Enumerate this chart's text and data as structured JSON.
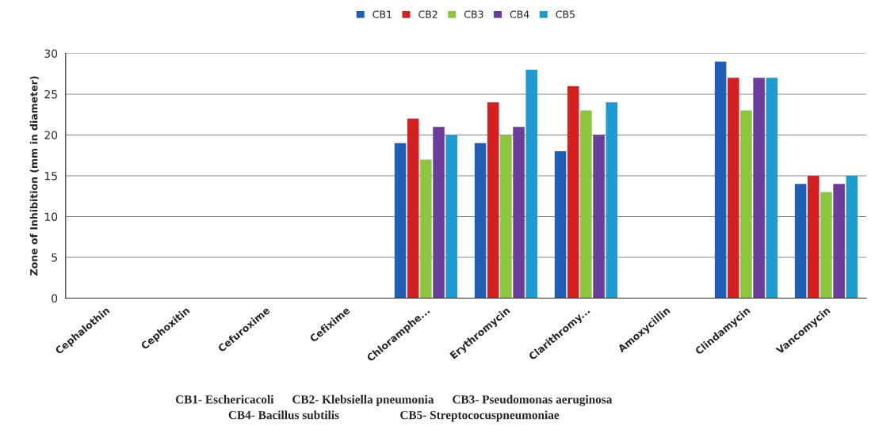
{
  "chart_data": {
    "type": "bar",
    "categories": [
      "Cephalothin",
      "Cephoxitin",
      "Cefuroxime",
      "Cefixime",
      "Chloramphe...",
      "Erythromycin",
      "Clarithromy...",
      "Amoxycillin",
      "Clindamycin",
      "Vancomycin"
    ],
    "series": [
      {
        "name": "CB1",
        "color": "#1f5fb5",
        "values": [
          0,
          0,
          0,
          0,
          19,
          19,
          18,
          0,
          29,
          14
        ]
      },
      {
        "name": "CB2",
        "color": "#d42020",
        "values": [
          0,
          0,
          0,
          0,
          22,
          24,
          26,
          0,
          27,
          15
        ]
      },
      {
        "name": "CB3",
        "color": "#8cc63f",
        "values": [
          0,
          0,
          0,
          0,
          17,
          20,
          23,
          0,
          23,
          13
        ]
      },
      {
        "name": "CB4",
        "color": "#6a3d9a",
        "values": [
          0,
          0,
          0,
          0,
          21,
          21,
          20,
          0,
          27,
          14
        ]
      },
      {
        "name": "CB5",
        "color": "#1e9bd0",
        "values": [
          0,
          0,
          0,
          0,
          20,
          28,
          24,
          0,
          27,
          15
        ]
      }
    ],
    "ylabel": "Zone of Inhibition (mm in diameter)",
    "ylim": [
      0,
      30
    ],
    "yticks": [
      0,
      5,
      10,
      15,
      20,
      25,
      30
    ],
    "grid": "y",
    "legend": "top",
    "annotations": [
      "CB1- Eschericacoli      CB2- Klebsiella pneumonia      CB3- Pseudomonas aeruginosa",
      "CB4- Bacillus subtilis                    CB5- Streptococuspneumoniae"
    ]
  }
}
